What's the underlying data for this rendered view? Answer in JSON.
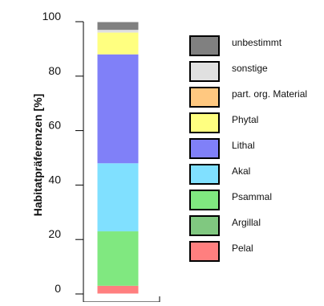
{
  "chart_data": {
    "type": "bar",
    "stacked": true,
    "title": "",
    "xlabel": "",
    "ylabel": "Habitatpräferenzen [%]",
    "ylim": [
      0,
      100
    ],
    "yticks": [
      0,
      20,
      40,
      60,
      80,
      100
    ],
    "categories": [
      ""
    ],
    "grid": false,
    "legend_position": "right",
    "series": [
      {
        "name": "Pelal",
        "color": "#ff7f7f",
        "values": [
          3
        ]
      },
      {
        "name": "Argillal",
        "color": "#80c880",
        "values": [
          0
        ]
      },
      {
        "name": "Psammal",
        "color": "#80e880",
        "values": [
          20
        ]
      },
      {
        "name": "Akal",
        "color": "#80e0ff",
        "values": [
          25
        ]
      },
      {
        "name": "Lithal",
        "color": "#8080f8",
        "values": [
          40
        ]
      },
      {
        "name": "Phytal",
        "color": "#ffff80",
        "values": [
          8
        ]
      },
      {
        "name": "part. org. Material",
        "color": "#ffc880",
        "values": [
          0
        ]
      },
      {
        "name": "sonstige",
        "color": "#e0e0e0",
        "values": [
          1
        ]
      },
      {
        "name": "unbestimmt",
        "color": "#808080",
        "values": [
          3
        ]
      }
    ],
    "legend_order": [
      "unbestimmt",
      "sonstige",
      "part. org. Material",
      "Phytal",
      "Lithal",
      "Akal",
      "Psammal",
      "Argillal",
      "Pelal"
    ]
  }
}
